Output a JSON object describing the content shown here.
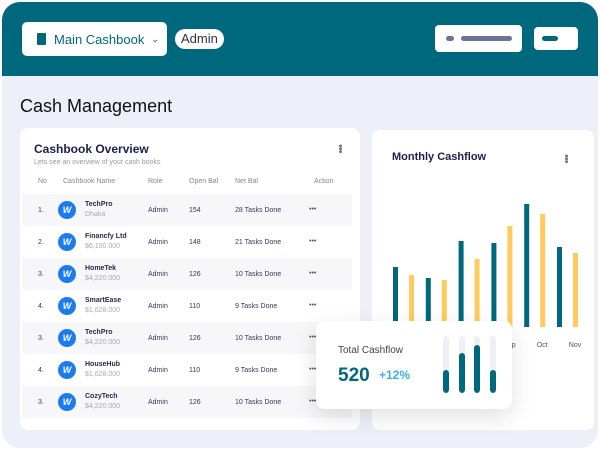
{
  "header": {
    "cashbook_label": "Main Cashbook",
    "role_badge": "Admin"
  },
  "page_title": "Cash Management",
  "overview": {
    "title": "Cashbook Overview",
    "subtitle": "Lets see an overview of your cash books",
    "columns": [
      "No",
      "Cashbook Name",
      "Role",
      "Open Bal",
      "Net Bal",
      "Action"
    ],
    "rows": [
      {
        "no": "1.",
        "name": "TechPro",
        "sub": "Dhaka",
        "role": "Admin",
        "open": "154",
        "net": "28 Tasks Done",
        "action": "•••"
      },
      {
        "no": "2.",
        "name": "Financfy Ltd",
        "sub": "$6,100.000",
        "role": "Admin",
        "open": "148",
        "net": "21 Tasks Done",
        "action": "•••"
      },
      {
        "no": "3.",
        "name": "HomeTek",
        "sub": "$4,220.000",
        "role": "Admin",
        "open": "126",
        "net": "10 Tasks Done",
        "action": "•••"
      },
      {
        "no": "4.",
        "name": "SmartEase",
        "sub": "$1,628.000",
        "role": "Admin",
        "open": "110",
        "net": "9 Tasks Done",
        "action": "•••"
      },
      {
        "no": "3.",
        "name": "TechPro",
        "sub": "$4,220.000",
        "role": "Admin",
        "open": "126",
        "net": "10 Tasks Done",
        "action": "•••"
      },
      {
        "no": "4.",
        "name": "HouseHub",
        "sub": "$1,628.000",
        "role": "Admin",
        "open": "110",
        "net": "9 Tasks Done",
        "action": "•••"
      },
      {
        "no": "3.",
        "name": "CozyTech",
        "sub": "$4,220.000",
        "role": "Admin",
        "open": "126",
        "net": "10 Tasks Done",
        "action": "•••"
      }
    ]
  },
  "monthly": {
    "title": "Monthly Cashflow"
  },
  "chart_data": {
    "type": "bar",
    "categories": [
      "",
      "",
      "",
      "Sep",
      "Oct",
      "Nov"
    ],
    "series": [
      {
        "values": [
          60,
          49,
          86,
          84,
          123,
          80
        ],
        "color": "#00687c"
      },
      {
        "values": [
          52,
          47,
          68,
          101,
          113,
          74
        ],
        "color": "#ffcb5c"
      }
    ],
    "grid": false
  },
  "total": {
    "title": "Total Cashflow",
    "value": "520",
    "change": "+12%",
    "mini_levels": [
      0.4,
      0.7,
      0.85,
      0.4
    ]
  },
  "colors": {
    "brand": "#00687c",
    "accent": "#ffcb5c",
    "positive": "#3ab0f0"
  }
}
